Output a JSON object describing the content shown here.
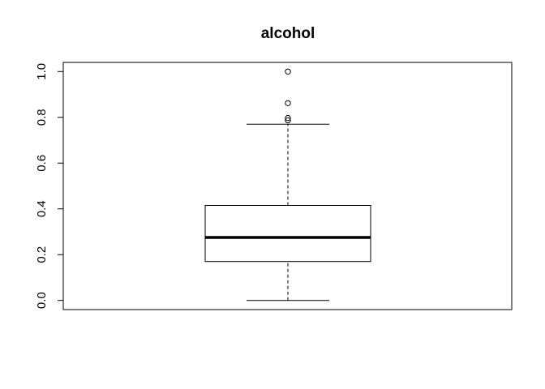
{
  "chart_data": {
    "type": "box",
    "title": "alcohol",
    "xlabel": "",
    "ylabel": "",
    "ylim": [
      -0.04,
      1.04
    ],
    "yticks": [
      0.0,
      0.2,
      0.4,
      0.6,
      0.8,
      1.0
    ],
    "ytick_labels": [
      "0.0",
      "0.2",
      "0.4",
      "0.6",
      "0.8",
      "1.0"
    ],
    "grid": false,
    "box": {
      "min": 0.0,
      "q1": 0.17,
      "median": 0.275,
      "q3": 0.415,
      "max": 0.77,
      "outliers": [
        0.787,
        0.797,
        0.862,
        1.0
      ]
    },
    "colors": {
      "stroke": "#000000",
      "background": "#ffffff"
    }
  }
}
